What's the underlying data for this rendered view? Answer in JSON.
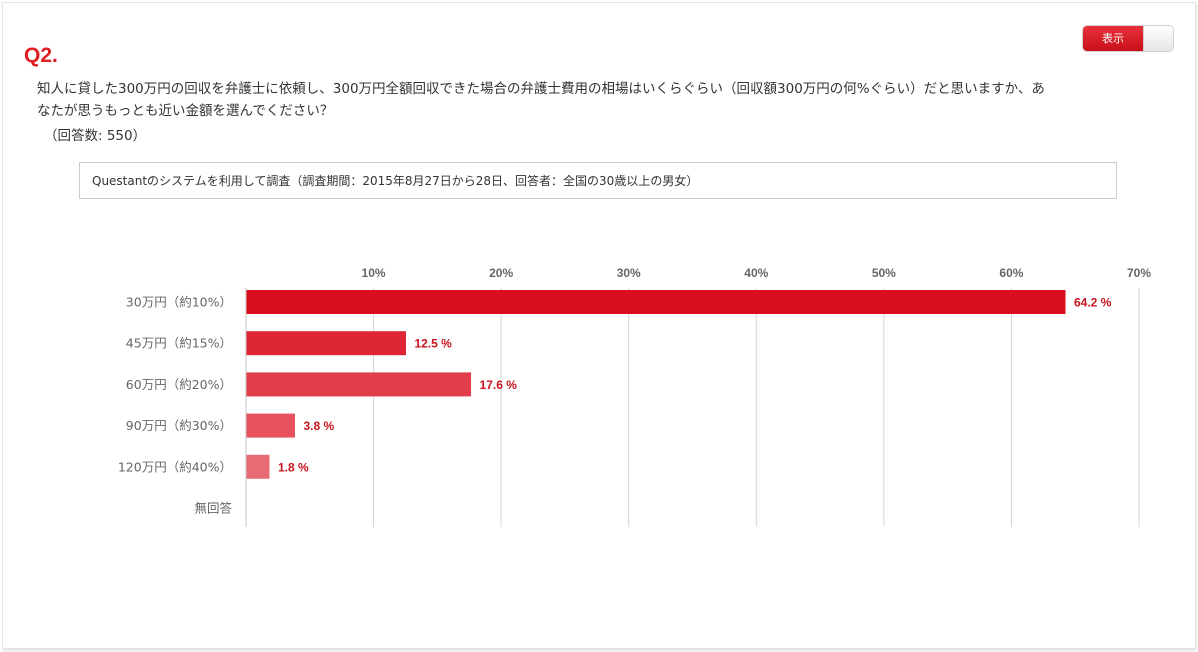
{
  "question": {
    "number": "Q2.",
    "text": "知人に貸した300万円の回収を弁護士に依頼し、300万円全額回収できた場合の弁護士費用の相場はいくらぐらい（回収額300万円の何%ぐらい）だと思いますか、あなたが思うもっとも近い金額を選んでください？",
    "count": "（回答数: 550）"
  },
  "toggle": {
    "label": "表示"
  },
  "source_note": "Questantのシステムを利用して調査（調査期間：2015年8月27日から28日、回答者：全国の30歳以上の男女）",
  "colors": {
    "accent": "#e01d22",
    "bars": [
      "#d90e1f",
      "#de2637",
      "#e23d4a",
      "#e5525e",
      "#e76b75",
      "#eb8890"
    ],
    "value_label": "#c8141e",
    "grid": "#d4d4d4"
  },
  "chart_data": {
    "type": "bar",
    "orientation": "horizontal",
    "categories": [
      "30万円（約10%）",
      "45万円（約15%）",
      "60万円（約20%）",
      "90万円（約30%）",
      "120万円（約40%）",
      "無回答"
    ],
    "values": [
      64.2,
      12.5,
      17.6,
      3.8,
      1.8,
      0
    ],
    "value_labels": [
      "64.2 %",
      "12.5 %",
      "17.6 %",
      "3.8 %",
      "1.8 %",
      ""
    ],
    "xlim": [
      0,
      70
    ],
    "x_ticks": [
      10,
      20,
      30,
      40,
      50,
      60,
      70
    ],
    "x_tick_labels": [
      "10%",
      "20%",
      "30%",
      "40%",
      "50%",
      "60%",
      "70%"
    ],
    "x_axis_position": "top",
    "grid": true,
    "legend": "none"
  }
}
